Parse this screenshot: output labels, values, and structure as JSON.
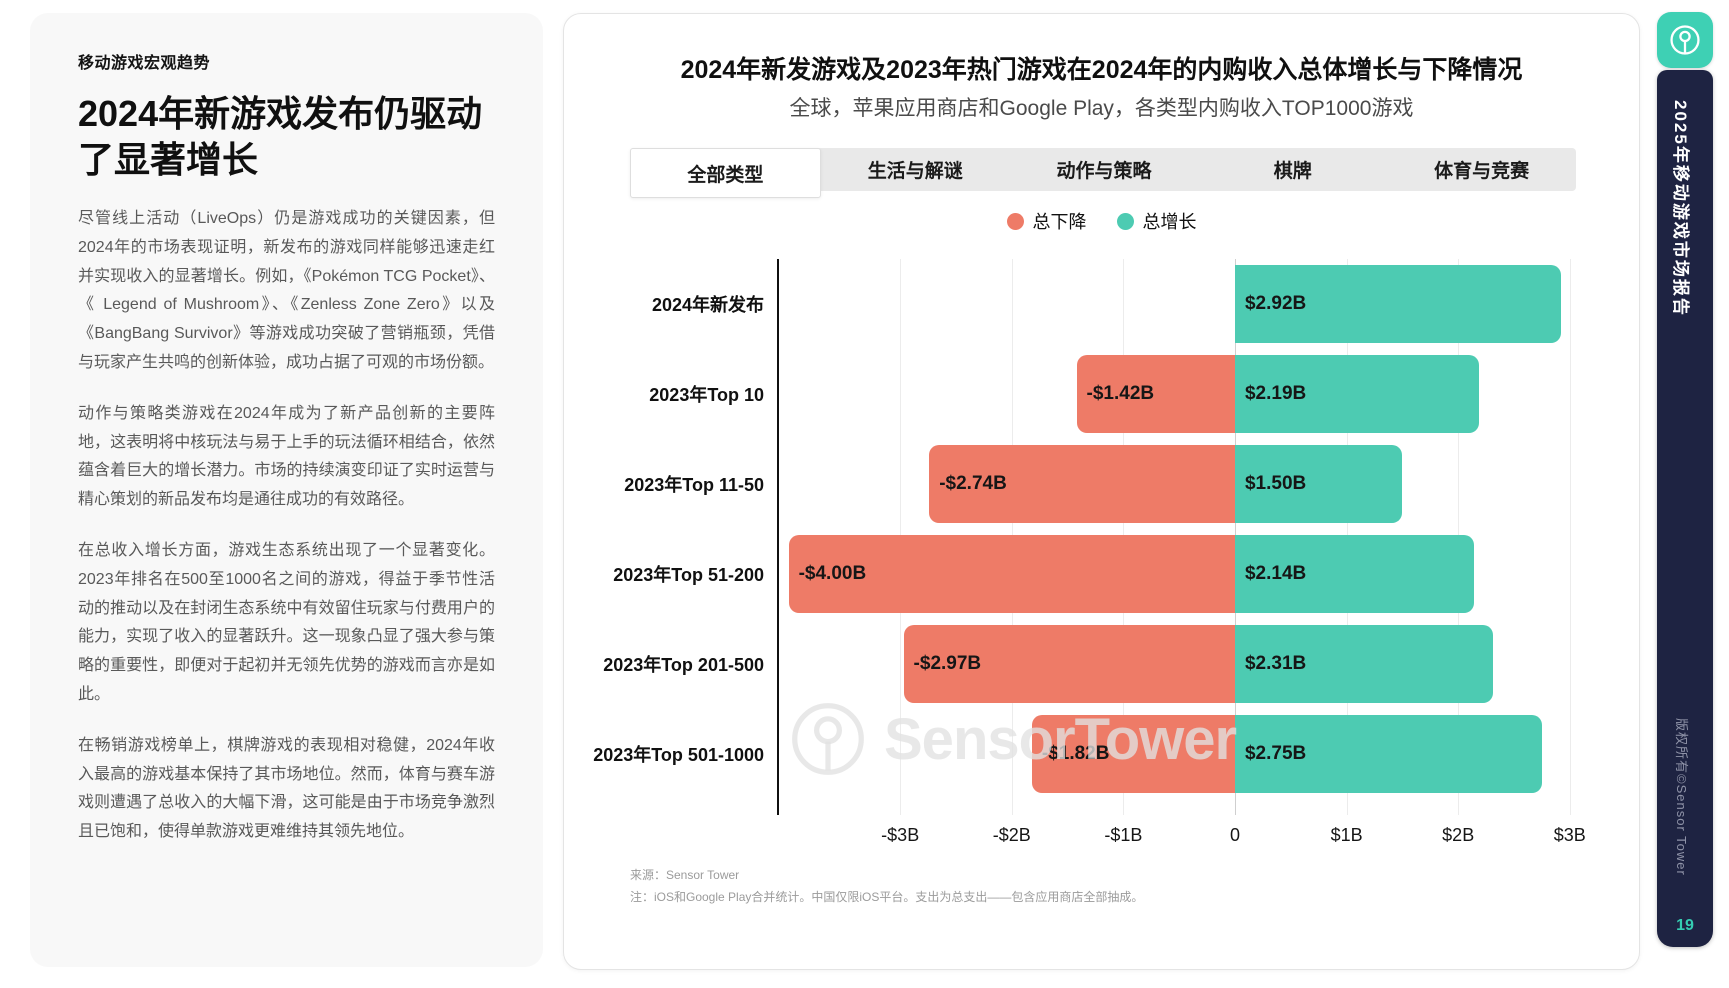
{
  "left_panel": {
    "eyebrow": "移动游戏宏观趋势",
    "heading": "2024年新游戏发布仍驱动了显著增长",
    "paragraphs": [
      "尽管线上活动（LiveOps）仍是游戏成功的关键因素，但2024年的市场表现证明，新发布的游戏同样能够迅速走红并实现收入的显著增长。例如，《Pokémon TCG Pocket》、《 Legend of Mushroom》、《Zenless Zone Zero》以及《BangBang Survivor》等游戏成功突破了营销瓶颈，凭借与玩家产生共鸣的创新体验，成功占据了可观的市场份额。",
      "动作与策略类游戏在2024年成为了新产品创新的主要阵地，这表明将中核玩法与易于上手的玩法循环相结合，依然蕴含着巨大的增长潜力。市场的持续演变印证了实时运营与精心策划的新品发布均是通往成功的有效路径。",
      "在总收入增长方面，游戏生态系统出现了一个显著变化。2023年排名在500至1000名之间的游戏，得益于季节性活动的推动以及在封闭生态系统中有效留住玩家与付费用户的能力，实现了收入的显著跃升。这一现象凸显了强大参与策略的重要性，即便对于起初并无领先优势的游戏而言亦是如此。",
      "在畅销游戏榜单上，棋牌游戏的表现相对稳健，2024年收入最高的游戏基本保持了其市场地位。然而，体育与赛车游戏则遭遇了总收入的大幅下滑，这可能是由于市场竞争激烈且已饱和，使得单款游戏更难维持其领先地位。"
    ]
  },
  "chart": {
    "title": "2024年新发游戏及2023年热门游戏在2024年的内购收入总体增长与下降情况",
    "subtitle": "全球，苹果应用商店和Google Play，各类型内购收入TOP1000游戏",
    "tabs": [
      {
        "label": "全部类型",
        "active": true
      },
      {
        "label": "生活与解谜",
        "active": false
      },
      {
        "label": "动作与策略",
        "active": false
      },
      {
        "label": "棋牌",
        "active": false
      },
      {
        "label": "体育与竞赛",
        "active": false
      }
    ],
    "legend": [
      {
        "label": "总下降",
        "color": "#ee7b67"
      },
      {
        "label": "总增长",
        "color": "#4dcbb2"
      }
    ],
    "watermark": "SensorTower",
    "source": "来源：Sensor Tower",
    "note": "注：iOS和Google Play合并统计。中国仅限iOS平台。支出为总支出——包含应用商店全部抽成。"
  },
  "chart_data": {
    "type": "bar",
    "orientation": "horizontal-diverging",
    "unit": "USD billions (in-app purchase revenue change)",
    "categories": [
      "2024年新发布",
      "2023年Top 10",
      "2023年Top 11-50",
      "2023年Top 51-200",
      "2023年Top 201-500",
      "2023年Top 501-1000"
    ],
    "series": [
      {
        "name": "总下降",
        "color": "#ee7b67",
        "values": [
          null,
          -1.42,
          -2.74,
          -4.0,
          -2.97,
          -1.82
        ],
        "labels": [
          "",
          "-$1.42B",
          "-$2.74B",
          "-$4.00B",
          "-$2.97B",
          "-$1.82B"
        ]
      },
      {
        "name": "总增长",
        "color": "#4dcbb2",
        "values": [
          2.92,
          2.19,
          1.5,
          2.14,
          2.31,
          2.75
        ],
        "labels": [
          "$2.92B",
          "$2.19B",
          "$1.50B",
          "$2.14B",
          "$2.31B",
          "$2.75B"
        ]
      }
    ],
    "x_ticks": [
      {
        "label": "-$3B",
        "value": -3
      },
      {
        "label": "-$2B",
        "value": -2
      },
      {
        "label": "-$1B",
        "value": -1
      },
      {
        "label": "0",
        "value": 0
      },
      {
        "label": "$1B",
        "value": 1
      },
      {
        "label": "$2B",
        "value": 2
      },
      {
        "label": "$3B",
        "value": 3
      }
    ],
    "xlim": [
      -4.095,
      3.19
    ],
    "grid": true,
    "legend_position": "top-center"
  },
  "sidebar": {
    "report_title": "2025年移动游戏市场报告",
    "copyright": "版权所有©Sensor Tower",
    "page": "19"
  }
}
